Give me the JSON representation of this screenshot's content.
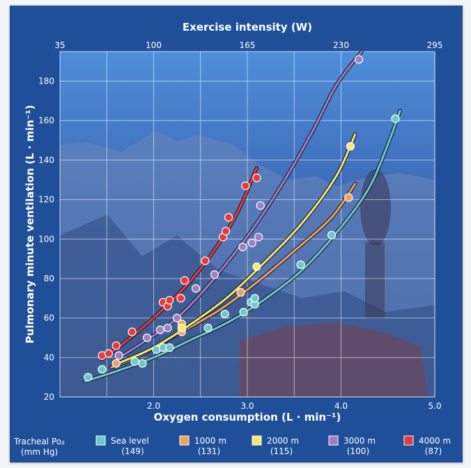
{
  "chart_data": {
    "type": "scatter",
    "title": "",
    "xlabel": "Oxygen consumption (L · min⁻¹)",
    "ylabel": "Pulmonary minute ventilation (L · min⁻¹)",
    "x2label": "Exercise intensity (W)",
    "xlim": [
      1.0,
      5.0
    ],
    "ylim": [
      20,
      195
    ],
    "x_ticks": [
      2.0,
      3.0,
      4.0,
      5.0
    ],
    "x_tick_labels": [
      "2.0",
      "3.0",
      "4.0",
      "5.0"
    ],
    "y_ticks": [
      20,
      40,
      60,
      80,
      100,
      120,
      140,
      160,
      180
    ],
    "y_tick_labels": [
      "20",
      "40",
      "60",
      "80",
      "100",
      "120",
      "140",
      "160",
      "180"
    ],
    "x2_tick_labels": [
      "35",
      "100",
      "165",
      "230",
      "295"
    ],
    "grid": true,
    "legend_title": "Tracheal Po₂\n(mm Hg)",
    "legend_position": "bottom",
    "series": [
      {
        "name": "Sea level",
        "sublabel": "(149)",
        "color": "#6ec9c6",
        "points": [
          [
            1.3,
            30
          ],
          [
            1.45,
            34
          ],
          [
            1.8,
            38
          ],
          [
            1.88,
            37
          ],
          [
            2.03,
            44
          ],
          [
            2.1,
            45
          ],
          [
            2.17,
            45
          ],
          [
            2.58,
            55
          ],
          [
            2.76,
            62
          ],
          [
            2.96,
            63
          ],
          [
            3.04,
            68
          ],
          [
            3.08,
            67
          ],
          [
            3.08,
            70
          ],
          [
            3.57,
            87
          ],
          [
            3.9,
            102
          ],
          [
            4.58,
            161
          ]
        ],
        "curve": [
          [
            1.27,
            28
          ],
          [
            1.6,
            33
          ],
          [
            2.0,
            40
          ],
          [
            2.4,
            49
          ],
          [
            2.8,
            58
          ],
          [
            3.2,
            70
          ],
          [
            3.6,
            85
          ],
          [
            4.0,
            106
          ],
          [
            4.3,
            126
          ],
          [
            4.5,
            148
          ],
          [
            4.63,
            165
          ]
        ]
      },
      {
        "name": "1000 m",
        "sublabel": "(131)",
        "color": "#f0a35c",
        "points": [
          [
            1.6,
            37
          ],
          [
            2.3,
            53
          ],
          [
            2.3,
            57
          ],
          [
            2.93,
            73
          ],
          [
            4.08,
            121
          ]
        ],
        "curve": [
          [
            1.55,
            35
          ],
          [
            1.9,
            42
          ],
          [
            2.3,
            53
          ],
          [
            2.7,
            64
          ],
          [
            3.1,
            78
          ],
          [
            3.5,
            94
          ],
          [
            3.9,
            111
          ],
          [
            4.15,
            128
          ]
        ]
      },
      {
        "name": "2000 m",
        "sublabel": "(115)",
        "color": "#f7ea6a",
        "points": [
          [
            2.3,
            55
          ],
          [
            3.1,
            86
          ],
          [
            4.1,
            147
          ]
        ],
        "curve": [
          [
            1.62,
            37
          ],
          [
            2.0,
            45
          ],
          [
            2.4,
            57
          ],
          [
            2.8,
            71
          ],
          [
            3.2,
            89
          ],
          [
            3.6,
            109
          ],
          [
            3.95,
            132
          ],
          [
            4.15,
            153
          ]
        ]
      },
      {
        "name": "3000 m",
        "sublabel": "(100)",
        "color": "#a07fc1",
        "points": [
          [
            1.63,
            41
          ],
          [
            1.93,
            50
          ],
          [
            2.07,
            54
          ],
          [
            2.15,
            55
          ],
          [
            2.25,
            60
          ],
          [
            2.45,
            75
          ],
          [
            2.65,
            82
          ],
          [
            2.95,
            96
          ],
          [
            3.05,
            98
          ],
          [
            3.12,
            101
          ],
          [
            3.14,
            117
          ],
          [
            4.19,
            191
          ]
        ],
        "curve": [
          [
            1.6,
            39
          ],
          [
            1.9,
            48
          ],
          [
            2.2,
            58
          ],
          [
            2.5,
            72
          ],
          [
            2.8,
            89
          ],
          [
            3.1,
            108
          ],
          [
            3.4,
            130
          ],
          [
            3.7,
            155
          ],
          [
            3.95,
            178
          ],
          [
            4.22,
            195
          ]
        ]
      },
      {
        "name": "4000 m",
        "sublabel": "(87)",
        "color": "#e53b3b",
        "points": [
          [
            1.45,
            41
          ],
          [
            1.52,
            42
          ],
          [
            1.6,
            46
          ],
          [
            1.77,
            53
          ],
          [
            2.1,
            68
          ],
          [
            2.15,
            66
          ],
          [
            2.17,
            69
          ],
          [
            2.29,
            70
          ],
          [
            2.33,
            79
          ],
          [
            2.55,
            89
          ],
          [
            2.74,
            101
          ],
          [
            2.77,
            104
          ],
          [
            2.8,
            111
          ],
          [
            2.98,
            127
          ],
          [
            3.1,
            131
          ]
        ],
        "curve": [
          [
            1.45,
            39
          ],
          [
            1.7,
            48
          ],
          [
            1.95,
            58
          ],
          [
            2.2,
            69
          ],
          [
            2.45,
            82
          ],
          [
            2.7,
            98
          ],
          [
            2.9,
            114
          ],
          [
            3.1,
            136
          ]
        ]
      }
    ]
  }
}
